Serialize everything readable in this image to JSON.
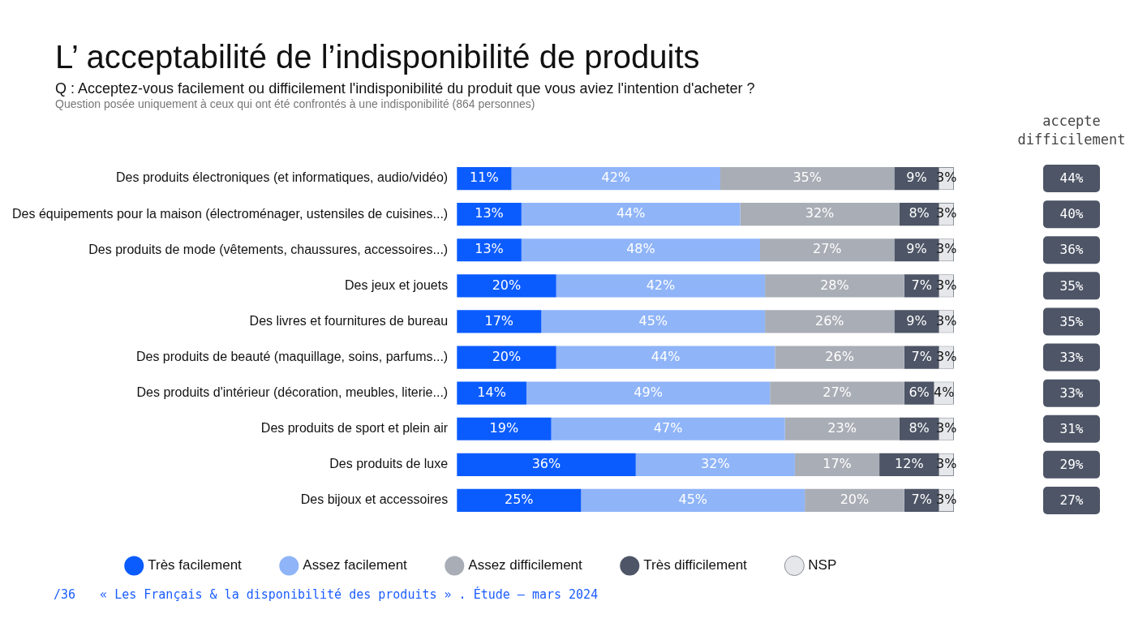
{
  "chart_data": {
    "type": "bar",
    "orientation": "horizontal",
    "stacked": true,
    "title": "L’ acceptabilité de l’indisponibilité de produits",
    "subtitle": "Q :  Acceptez-vous facilement ou difficilement l'indisponibilité du produit que vous aviez l'intention d'acheter ?",
    "categories": [
      "Des produits électroniques (et informatiques, audio/vidéo)",
      "Des équipements pour la maison (électroménager, ustensiles de cuisines...)",
      "Des produits de mode (vêtements, chaussures, accessoires...)",
      "Des jeux et jouets",
      "Des livres et fournitures de bureau",
      "Des produits de beauté (maquillage, soins, parfums...)",
      "Des produits d'intérieur (décoration, meubles, literie...)",
      "Des produits de sport et plein air",
      "Des produits de luxe",
      "Des bijoux et accessoires"
    ],
    "series": [
      {
        "name": "Très facilement",
        "color": "#0b5cff",
        "values": [
          11,
          13,
          13,
          20,
          17,
          20,
          14,
          19,
          36,
          25
        ],
        "value_labels": [
          "11%",
          "13%",
          "13%",
          "20%",
          "17%",
          "20%",
          "14%",
          "19%",
          "36%",
          "25%"
        ]
      },
      {
        "name": "Assez facilement",
        "color": "#8fb4f8",
        "values": [
          42,
          44,
          48,
          42,
          45,
          44,
          49,
          47,
          32,
          45
        ],
        "value_labels": [
          "42%",
          "44%",
          "48%",
          "42%",
          "45%",
          "44%",
          "49%",
          "47%",
          "32%",
          "45%"
        ]
      },
      {
        "name": "Assez difficilement",
        "color": "#a9adb5",
        "values": [
          35,
          32,
          27,
          28,
          26,
          26,
          27,
          23,
          17,
          20
        ],
        "value_labels": [
          "35%",
          "32%",
          "27%",
          "28%",
          "26%",
          "26%",
          "27%",
          "23%",
          "17%",
          "20%"
        ]
      },
      {
        "name": "Très difficilement",
        "color": "#4d5566",
        "values": [
          9,
          8,
          9,
          7,
          9,
          7,
          6,
          8,
          12,
          7
        ],
        "value_labels": [
          "9%",
          "8%",
          "9%",
          "7%",
          "9%",
          "7%",
          "6%",
          "8%",
          "12%",
          "7%"
        ]
      },
      {
        "name": "NSP",
        "color": "#e6e7ea",
        "values": [
          3,
          3,
          3,
          3,
          3,
          3,
          4,
          3,
          3,
          3
        ],
        "value_labels": [
          "3%",
          "3%",
          "3%",
          "3%",
          "3%",
          "3%",
          "4%",
          "3%",
          "3%",
          "3%"
        ]
      }
    ],
    "annotations": [
      "Question posée uniquement à ceux qui ont été confrontés à une indisponibilité (864 personnes)",
      "accepte difficilement",
      "44%",
      "40%",
      "36%",
      "35%",
      "35%",
      "33%",
      "33%",
      "31%",
      "29%",
      "27%",
      "/36",
      "« Les Français & la disponibilité des produits » . Étude – mars 2024"
    ],
    "legend": "bottom",
    "tick_labels": "y"
  }
}
